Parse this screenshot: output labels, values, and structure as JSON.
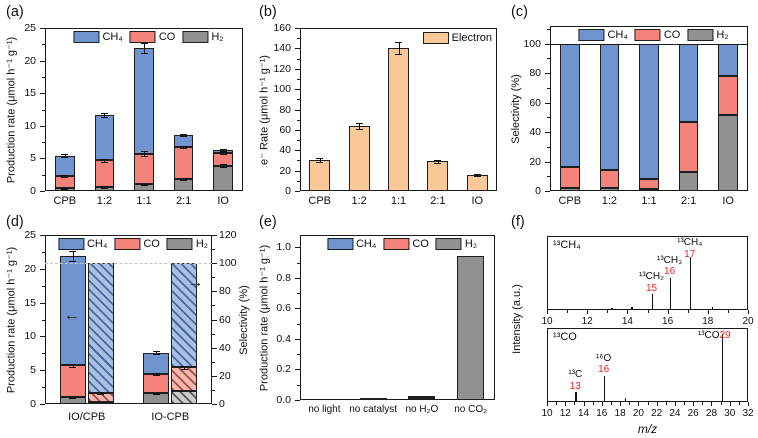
{
  "colors": {
    "ch4": "#6f94ce",
    "co": "#f4837b",
    "h2": "#919191",
    "electron": "#fac897",
    "axis": "#1a1a1a",
    "red_label": "#e8231f",
    "dashed_line": "#c4c4c4"
  },
  "panels": {
    "a_label": "(a)",
    "b_label": "(b)",
    "c_label": "(c)",
    "d_label": "(d)",
    "e_label": "(e)",
    "f_label": "(f)"
  },
  "chart_data": [
    {
      "panel": "a",
      "type": "bar",
      "stacked": true,
      "ylabel": "Production rate (μmol h⁻¹ g⁻¹)",
      "ylim": [
        0,
        25
      ],
      "ytick_step": 5,
      "grid": false,
      "legend_position": "top-center",
      "categories": [
        "CPB",
        "1:2",
        "1:1",
        "2:1",
        "IO"
      ],
      "legend": [
        "CH₄",
        "CO",
        "H₂"
      ],
      "series": [
        {
          "name": "H₂",
          "color": "h2",
          "values": [
            0.4,
            0.6,
            1.0,
            1.8,
            3.9
          ],
          "errors": [
            0.05,
            0.1,
            0.15,
            0.1,
            0.2
          ]
        },
        {
          "name": "CO",
          "color": "co",
          "values": [
            1.9,
            4.1,
            4.7,
            4.9,
            2.0
          ],
          "errors": [
            0.1,
            0.2,
            0.4,
            0.15,
            0.15
          ]
        },
        {
          "name": "CH₄",
          "color": "ch4",
          "values": [
            3.1,
            6.9,
            16.2,
            1.9,
            0.4
          ],
          "errors": [
            0.2,
            0.3,
            0.8,
            0.15,
            0.2
          ]
        }
      ]
    },
    {
      "panel": "b",
      "type": "bar",
      "stacked": false,
      "ylabel": "e⁻ Rate (μmol h⁻¹ g⁻¹)",
      "ylim": [
        0,
        160
      ],
      "ytick_step": 20,
      "grid": false,
      "legend_position": "top-right",
      "categories": [
        "CPB",
        "1:2",
        "1:1",
        "2:1",
        "IO"
      ],
      "legend": [
        "Electron"
      ],
      "series": [
        {
          "name": "Electron",
          "color": "electron",
          "values": [
            30,
            64,
            140,
            29,
            15.5
          ],
          "errors": [
            2,
            3,
            6,
            1.5,
            1
          ]
        }
      ]
    },
    {
      "panel": "c",
      "type": "bar",
      "stacked": true,
      "ylabel": "Selectivity (%)",
      "ylim": [
        0,
        112
      ],
      "ytick_max": 100,
      "ytick_step": 20,
      "hline": 100,
      "grid": false,
      "legend_position": "top-center",
      "categories": [
        "CPB",
        "1:2",
        "1:1",
        "2:1",
        "IO"
      ],
      "legend": [
        "CH₄",
        "CO",
        "H₂"
      ],
      "series": [
        {
          "name": "H₂",
          "color": "h2",
          "values": [
            2,
            2,
            1.5,
            13,
            51.5
          ]
        },
        {
          "name": "CO",
          "color": "co",
          "values": [
            14,
            12.5,
            6.5,
            33.5,
            26.5
          ]
        },
        {
          "name": "CH₄",
          "color": "ch4",
          "values": [
            84,
            85.5,
            92,
            53.5,
            22
          ]
        }
      ]
    },
    {
      "panel": "d",
      "type": "bar",
      "dual_axis": true,
      "ylabel_left": "Production rate (μmol h⁻¹ g⁻¹)",
      "ylabel_right": "Selectivity (%)",
      "ylim_left": [
        0,
        25
      ],
      "ytick_step_left": 5,
      "ylim_right": [
        0,
        120
      ],
      "ytick_step_right": 20,
      "dashed_hline_right": 100,
      "legend": [
        "CH₄",
        "CO",
        "H₂"
      ],
      "categories": [
        "IO/CPB",
        "IO-CPB"
      ],
      "rate_series": [
        {
          "name": "H₂",
          "color": "h2",
          "values": [
            1.0,
            1.6
          ],
          "errors": [
            0.1,
            0.1
          ]
        },
        {
          "name": "CO",
          "color": "co",
          "values": [
            4.7,
            2.8
          ],
          "errors": [
            0.25,
            0.15
          ]
        },
        {
          "name": "CH₄",
          "color": "ch4",
          "values": [
            16.2,
            3.2
          ],
          "errors": [
            0.7,
            0.2
          ]
        }
      ],
      "selectivity_series": [
        {
          "name": "H₂",
          "color": "h2",
          "values": [
            1.5,
            9.5
          ]
        },
        {
          "name": "CO",
          "color": "co",
          "values": [
            6.5,
            16.5
          ],
          "errors": [
            0.6,
            0.8
          ]
        },
        {
          "name": "CH₄",
          "color": "ch4",
          "values": [
            92,
            74
          ]
        }
      ]
    },
    {
      "panel": "e",
      "type": "bar",
      "stacked": true,
      "ylabel": "Production rate (μmol h⁻¹ g⁻¹)",
      "ylim": [
        0,
        1.08
      ],
      "ytick_max": 1.0,
      "ytick_step": 0.2,
      "ytick_decimals": 1,
      "grid": false,
      "legend_position": "top-center",
      "categories": [
        "no light",
        "no catalyst",
        "no H₂O",
        "no CO₂"
      ],
      "legend": [
        "CH₄",
        "CO",
        "H₂"
      ],
      "series": [
        {
          "name": "H₂",
          "color": "h2",
          "values": [
            0,
            0.013,
            0.012,
            0.94
          ]
        },
        {
          "name": "CO",
          "color": "co",
          "values": [
            0,
            0,
            0.013,
            0
          ]
        },
        {
          "name": "CH₄",
          "color": "ch4",
          "values": [
            0,
            0,
            0,
            0
          ]
        }
      ]
    },
    {
      "panel": "f",
      "type": "spectra",
      "ylabel": "Intensity (a.u.)",
      "xlabel": "m/z",
      "spectra": [
        {
          "corner_label": "¹³CH₄",
          "xlim": [
            10,
            20
          ],
          "xtick_step": 2,
          "xticks": [
            10,
            12,
            14,
            16,
            18,
            20
          ],
          "peaks": [
            {
              "mz": 13.2,
              "h": 2
            },
            {
              "mz": 14.2,
              "h": 3
            },
            {
              "mz": 15.2,
              "h": 20,
              "ann": "¹³CH₂",
              "num": "15"
            },
            {
              "mz": 16.1,
              "h": 42,
              "ann": "¹³CH₃",
              "num": "16"
            },
            {
              "mz": 17.1,
              "h": 70,
              "ann": "¹³CH₄",
              "num": "17"
            },
            {
              "mz": 18.2,
              "h": 3
            }
          ]
        },
        {
          "corner_label": "¹³CO",
          "xlim": [
            10,
            32
          ],
          "xtick_step": 2,
          "xticks": [
            10,
            12,
            14,
            16,
            18,
            20,
            22,
            24,
            26,
            28,
            30,
            32
          ],
          "peaks": [
            {
              "mz": 13.1,
              "h": 12,
              "ann": "¹³C",
              "num": "13"
            },
            {
              "mz": 16.2,
              "h": 34,
              "ann": "¹⁶O",
              "num": "16"
            },
            {
              "mz": 18.5,
              "h": 4
            },
            {
              "mz": 29.1,
              "h": 90,
              "ann": "¹³CO",
              "num": "29",
              "inline": true
            }
          ]
        }
      ]
    }
  ]
}
